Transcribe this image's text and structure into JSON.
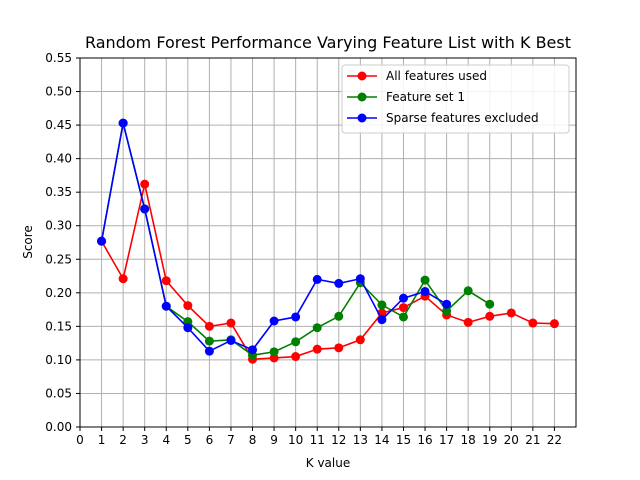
{
  "chart_data": {
    "type": "line",
    "title": "Random Forest Performance Varying Feature List with K Best",
    "xlabel": "K value",
    "ylabel": "Score",
    "xlim": [
      0,
      23
    ],
    "ylim": [
      0,
      0.55
    ],
    "xticks": [
      "0",
      "1",
      "2",
      "3",
      "4",
      "5",
      "6",
      "7",
      "8",
      "9",
      "10",
      "11",
      "12",
      "13",
      "14",
      "15",
      "16",
      "17",
      "18",
      "19",
      "20",
      "21",
      "22"
    ],
    "yticks": [
      "0.00",
      "0.05",
      "0.10",
      "0.15",
      "0.20",
      "0.25",
      "0.30",
      "0.35",
      "0.40",
      "0.45",
      "0.50",
      "0.55"
    ],
    "grid": true,
    "legend_position": "top-right",
    "series": [
      {
        "name": "All features used",
        "color": "#ff0000",
        "x": [
          1,
          2,
          3,
          4,
          5,
          6,
          7,
          8,
          9,
          10,
          11,
          12,
          13,
          14,
          15,
          16,
          17,
          18,
          19,
          20,
          21,
          22
        ],
        "y": [
          0.277,
          0.221,
          0.362,
          0.218,
          0.181,
          0.15,
          0.155,
          0.101,
          0.103,
          0.105,
          0.116,
          0.118,
          0.13,
          0.17,
          0.178,
          0.195,
          0.167,
          0.156,
          0.165,
          0.17,
          0.155,
          0.154
        ]
      },
      {
        "name": "Feature set 1",
        "color": "#008000",
        "x": [
          1,
          2,
          3,
          4,
          5,
          6,
          7,
          8,
          9,
          10,
          11,
          12,
          13,
          14,
          15,
          16,
          17,
          18,
          19
        ],
        "y": [
          0.277,
          0.453,
          0.325,
          0.18,
          0.157,
          0.128,
          0.13,
          0.107,
          0.112,
          0.127,
          0.148,
          0.165,
          0.215,
          0.182,
          0.164,
          0.219,
          0.173,
          0.203,
          0.183
        ]
      },
      {
        "name": "Sparse features excluded",
        "color": "#0000ff",
        "x": [
          1,
          2,
          3,
          4,
          5,
          6,
          7,
          8,
          9,
          10,
          11,
          12,
          13,
          14,
          15,
          16,
          17
        ],
        "y": [
          0.277,
          0.453,
          0.325,
          0.18,
          0.148,
          0.113,
          0.129,
          0.115,
          0.158,
          0.164,
          0.22,
          0.214,
          0.221,
          0.16,
          0.192,
          0.202,
          0.183
        ]
      }
    ]
  }
}
